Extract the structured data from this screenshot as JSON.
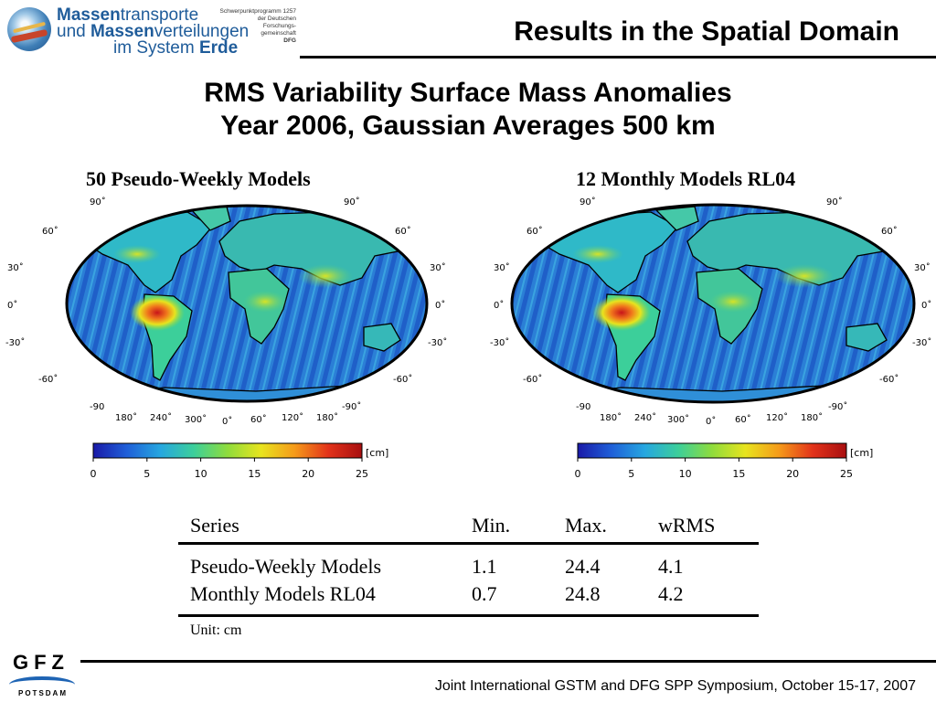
{
  "header": {
    "logo": {
      "line1_bold": "Massen",
      "line1_rest": "transporte",
      "line2_start": "und ",
      "line2_bold": "Massen",
      "line2_rest": "verteilungen",
      "line3_start": "im System ",
      "line3_bold": "Erde",
      "spp_lines": [
        "Schwerpunktprogramm 1257",
        "der Deutschen",
        "Forschungs-",
        "gemeinschaft",
        "DFG"
      ]
    },
    "title": "Results in the Spatial Domain"
  },
  "main_title": {
    "line1": "RMS Variability Surface Mass Anomalies",
    "line2": "Year 2006, Gaussian Averages 500 km"
  },
  "maps": [
    {
      "title": "50 Pseudo-Weekly Models",
      "lat_labels": [
        "90˚",
        "60˚",
        "30˚",
        "0˚",
        "-30˚",
        "-60˚",
        "-90"
      ],
      "right_lat_labels": [
        "90˚",
        "60˚",
        "30˚",
        "0˚",
        "-30˚",
        "-60˚",
        "-90˚"
      ],
      "lon_labels": [
        "180˚",
        "240˚",
        "300˚",
        "0˚",
        "60˚",
        "120˚",
        "180˚"
      ]
    },
    {
      "title": "12 Monthly Models RL04",
      "lat_labels": [
        "90˚",
        "60˚",
        "30˚",
        "0˚",
        "-30˚",
        "-60˚",
        "-90"
      ],
      "right_lat_labels": [
        "90˚",
        "60˚",
        "30˚",
        "0˚",
        "-30˚",
        "-60˚",
        "-90˚"
      ],
      "lon_labels": [
        "180˚",
        "240˚",
        "300˚",
        "0˚",
        "60˚",
        "120˚",
        "180˚"
      ]
    }
  ],
  "colorbar": {
    "unit": "[cm]",
    "ticks": [
      "0",
      "5",
      "10",
      "15",
      "20",
      "25"
    ],
    "range": [
      0,
      25
    ],
    "colors": [
      "#1a1aa8",
      "#1f5fd8",
      "#26a7e0",
      "#3ccf9a",
      "#8fdc3c",
      "#e8e41e",
      "#f59a1a",
      "#e2321a",
      "#a80f10"
    ]
  },
  "table": {
    "headers": [
      "Series",
      "Min.",
      "Max.",
      "wRMS"
    ],
    "rows": [
      [
        "Pseudo-Weekly Models",
        "1.1",
        "24.4",
        "4.1"
      ],
      [
        "Monthly Models RL04",
        "0.7",
        "24.8",
        "4.2"
      ]
    ],
    "unit_note": "Unit: cm"
  },
  "footer": {
    "logo_letters": "GFZ",
    "logo_sub": "POTSDAM",
    "text": "Joint International GSTM and DFG SPP Symposium, October 15-17, 2007"
  }
}
